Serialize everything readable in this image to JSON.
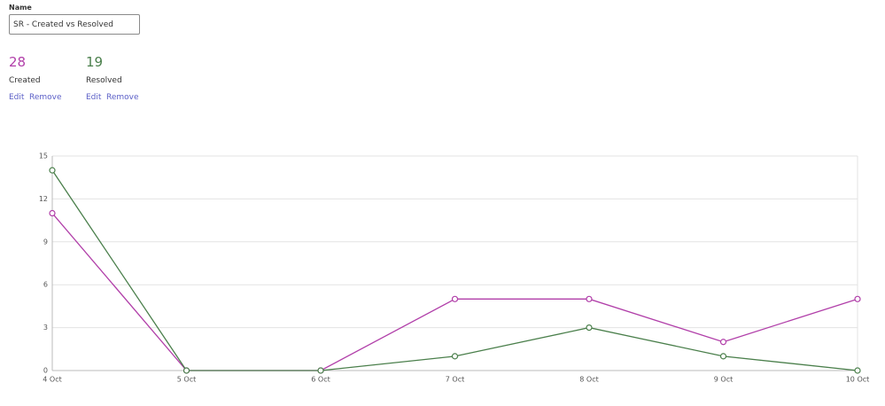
{
  "form": {
    "name_label": "Name",
    "name_value": "SR - Created vs Resolved"
  },
  "metrics": [
    {
      "count": 28,
      "label": "Created",
      "edit": "Edit",
      "remove": "Remove"
    },
    {
      "count": 19,
      "label": "Resolved",
      "edit": "Edit",
      "remove": "Remove"
    }
  ],
  "chart_data": {
    "type": "line",
    "categories": [
      "4 Oct",
      "5 Oct",
      "6 Oct",
      "7 Oct",
      "8 Oct",
      "9 Oct",
      "10 Oct"
    ],
    "series": [
      {
        "color": "#b13fa9",
        "values": [
          11,
          0,
          0,
          5,
          5,
          2,
          5
        ]
      },
      {
        "color": "#4a7f4b",
        "values": [
          14,
          0,
          0,
          1,
          3,
          1,
          0
        ]
      }
    ],
    "ylim": [
      0,
      15
    ],
    "yticks": [
      0,
      3,
      6,
      9,
      12,
      15
    ],
    "grid": true
  }
}
